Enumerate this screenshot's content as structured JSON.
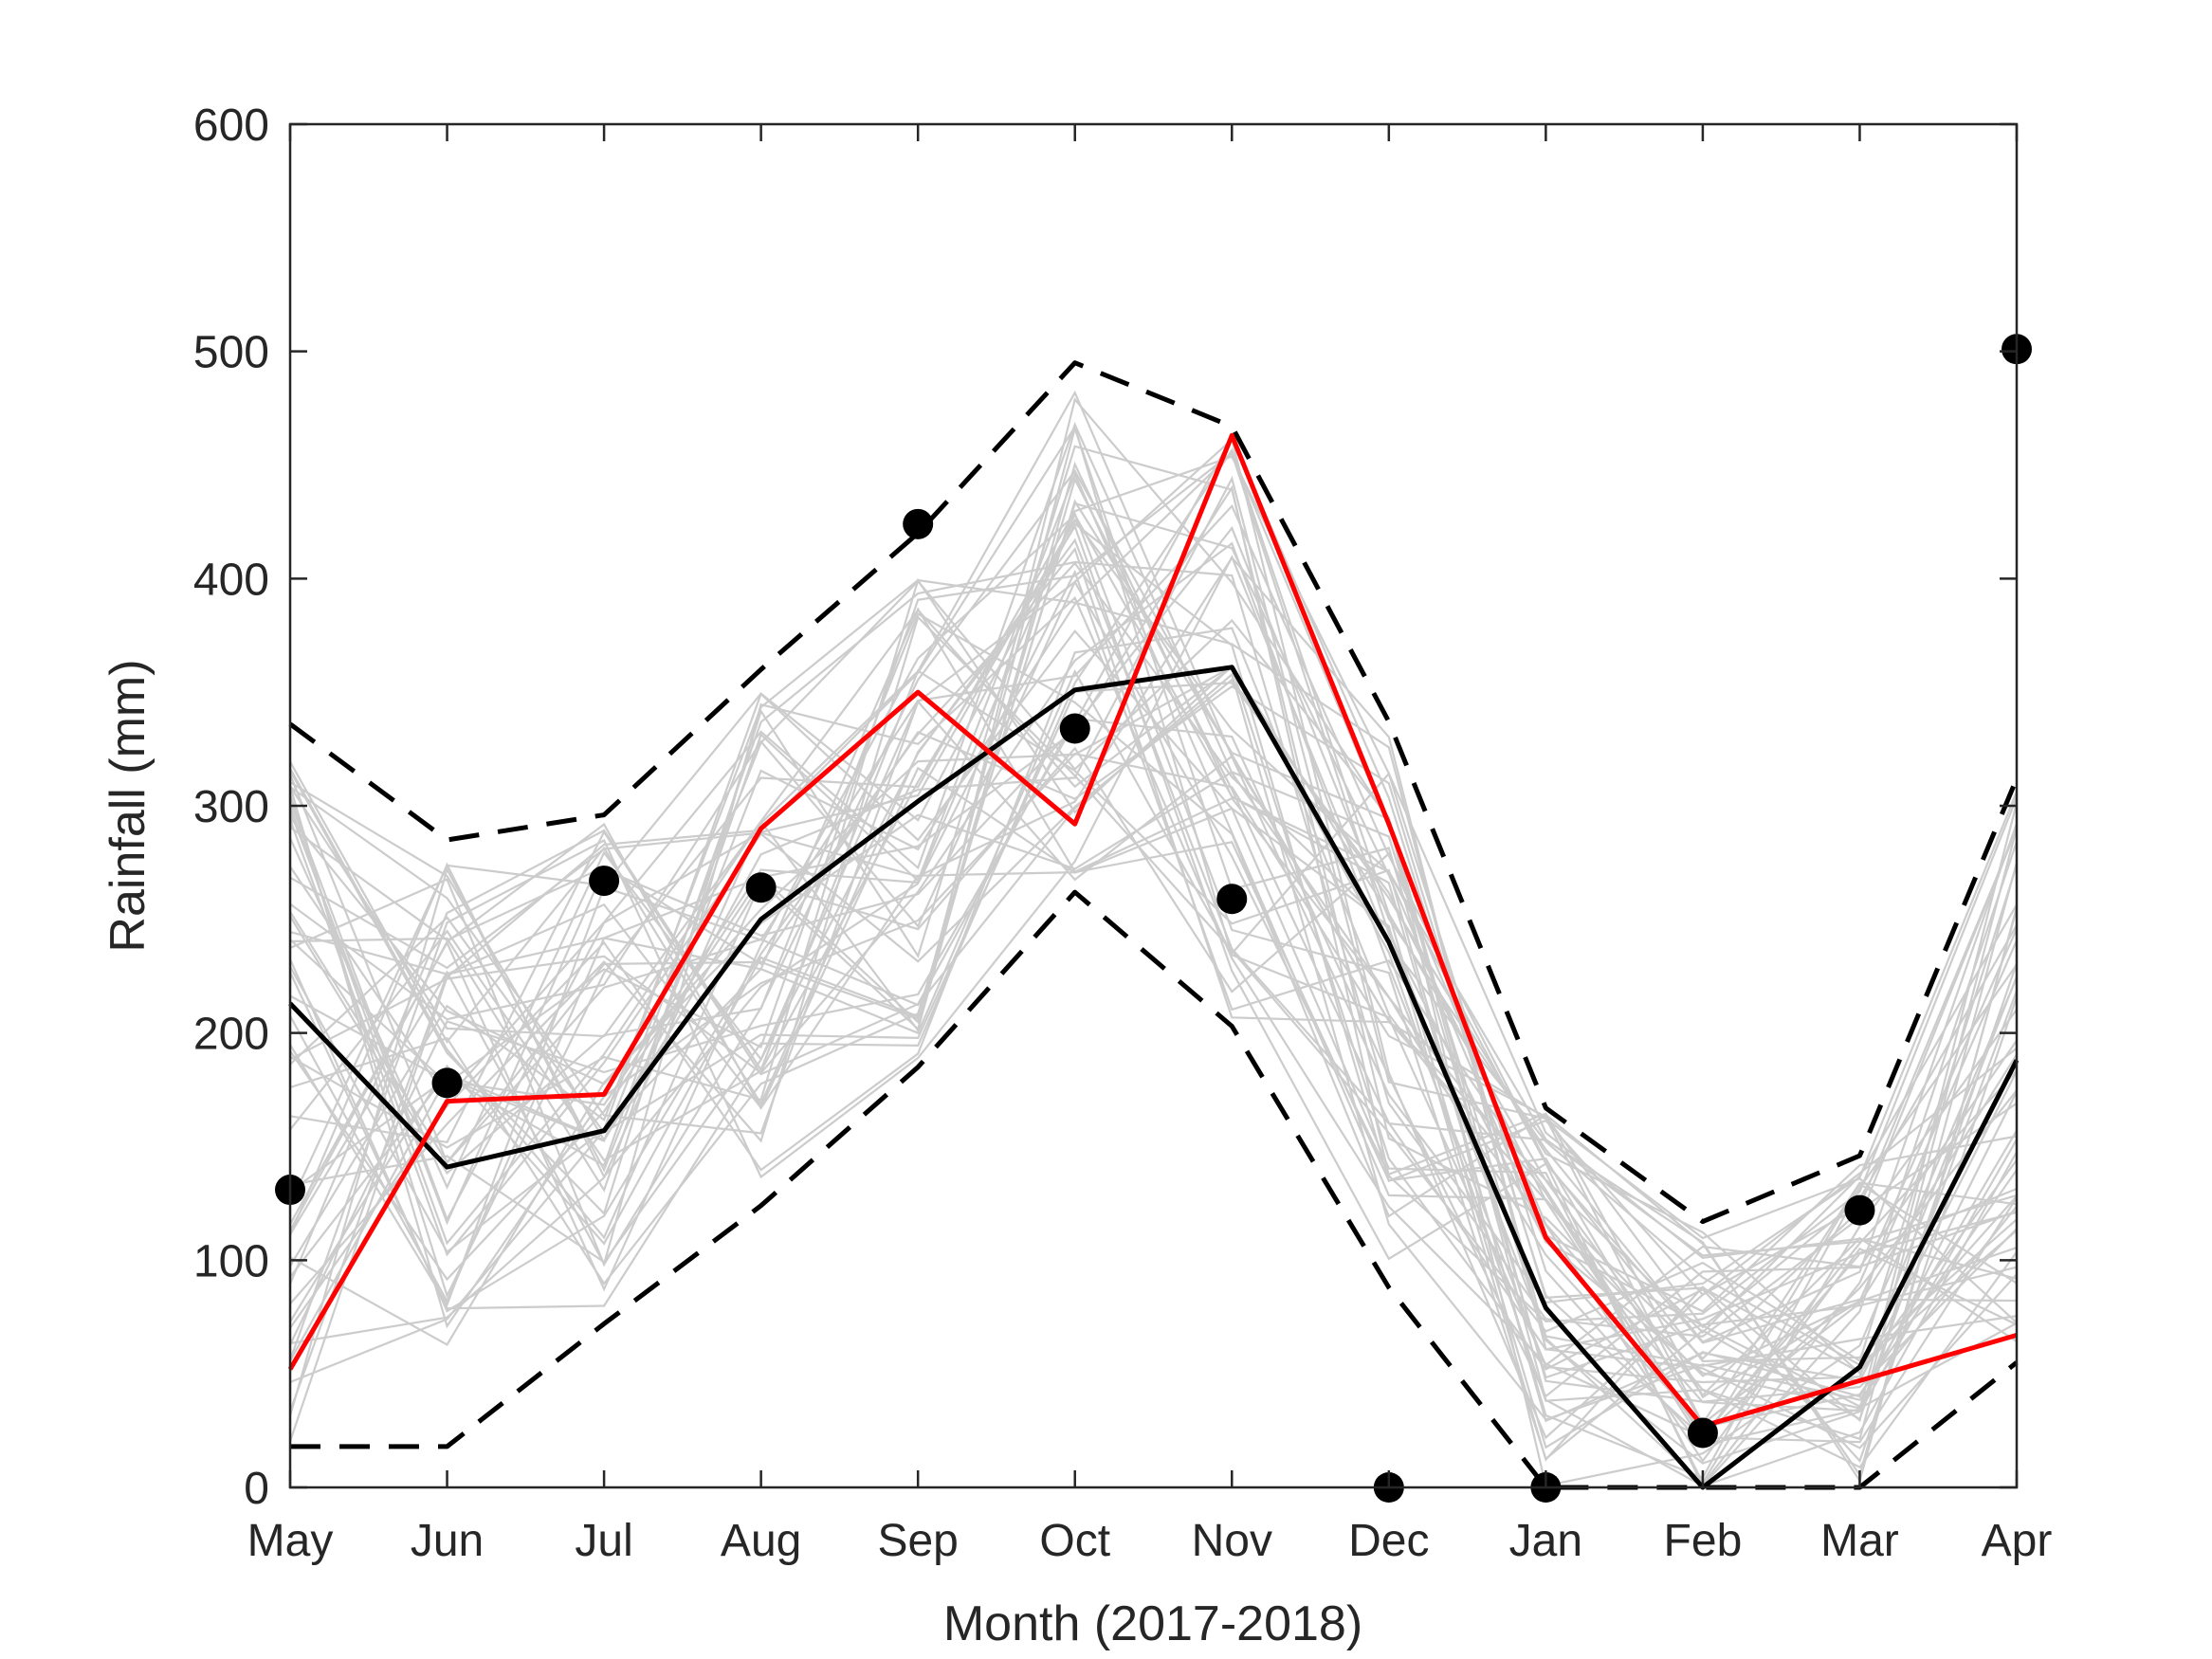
{
  "chart_data": {
    "type": "line",
    "xlabel": "Month (2017-2018)",
    "ylabel": "Rainfall (mm)",
    "ylim": [
      0,
      600
    ],
    "yticks": [
      0,
      100,
      200,
      300,
      400,
      500,
      600
    ],
    "categories": [
      "May",
      "Jun",
      "Jul",
      "Aug",
      "Sep",
      "Oct",
      "Nov",
      "Dec",
      "Jan",
      "Feb",
      "Mar",
      "Apr"
    ],
    "grid": false,
    "legend": "none",
    "series": [
      {
        "style": "dashed",
        "color": "#000000",
        "values": [
          336,
          285,
          296,
          360,
          420,
          495,
          467,
          337,
          167,
          117,
          146,
          312
        ]
      },
      {
        "style": "dashed",
        "color": "#000000",
        "values": [
          18,
          18,
          72,
          124,
          185,
          262,
          203,
          88,
          0,
          0,
          0,
          55
        ]
      },
      {
        "style": "solid",
        "color": "#000000",
        "values": [
          213,
          141,
          157,
          250,
          302,
          351,
          361,
          240,
          79,
          0,
          53,
          188
        ]
      },
      {
        "style": "solid",
        "color": "#ff0000",
        "values": [
          52,
          170,
          173,
          290,
          350,
          292,
          463,
          292,
          110,
          27,
          47,
          67
        ]
      },
      {
        "style": "markers",
        "color": "#000000",
        "values": [
          131,
          178,
          267,
          264,
          424,
          334,
          259,
          0,
          0,
          24,
          122,
          501
        ]
      }
    ],
    "ensemble": {
      "color": "#cccccc",
      "count": 60,
      "lower": [
        18,
        60,
        78,
        125,
        185,
        260,
        205,
        85,
        0,
        0,
        0,
        55
      ],
      "upper": [
        330,
        282,
        295,
        358,
        408,
        485,
        465,
        335,
        165,
        115,
        145,
        308
      ]
    }
  }
}
